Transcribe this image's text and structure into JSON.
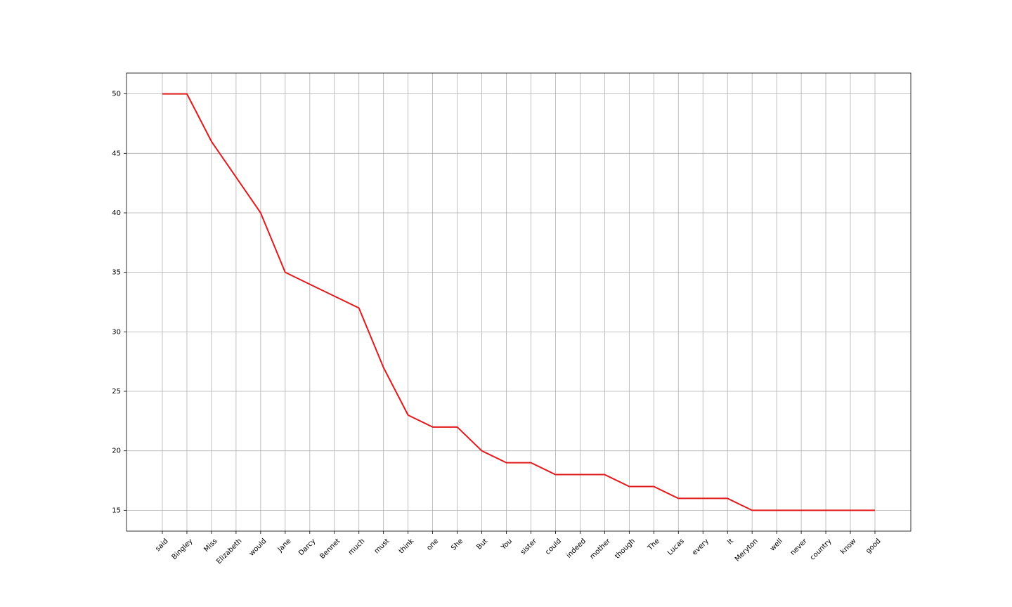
{
  "chart_data": {
    "type": "line",
    "title": "",
    "xlabel": "",
    "ylabel": "",
    "categories": [
      "said",
      "Bingley",
      "Miss",
      "Elizabeth",
      "would",
      "Jane",
      "Darcy",
      "Bennet",
      "much",
      "must",
      "think",
      "one",
      "She",
      "But",
      "You",
      "sister",
      "could",
      "indeed",
      "mother",
      "though",
      "The",
      "Lucas",
      "every",
      "It",
      "Meryton",
      "well",
      "never",
      "country",
      "know",
      "good"
    ],
    "series": [
      {
        "values": [
          50,
          50,
          46,
          43,
          40,
          35,
          34,
          33,
          32,
          27,
          23,
          22,
          22,
          20,
          19,
          19,
          18,
          18,
          18,
          17,
          17,
          16,
          16,
          16,
          15,
          15,
          15,
          15,
          15,
          15
        ],
        "color": "#e31a1c"
      }
    ],
    "yticks": [
      15,
      20,
      25,
      30,
      35,
      40,
      45,
      50
    ],
    "ylim": [
      13.25,
      51.75
    ],
    "grid": true,
    "legend": "none"
  }
}
